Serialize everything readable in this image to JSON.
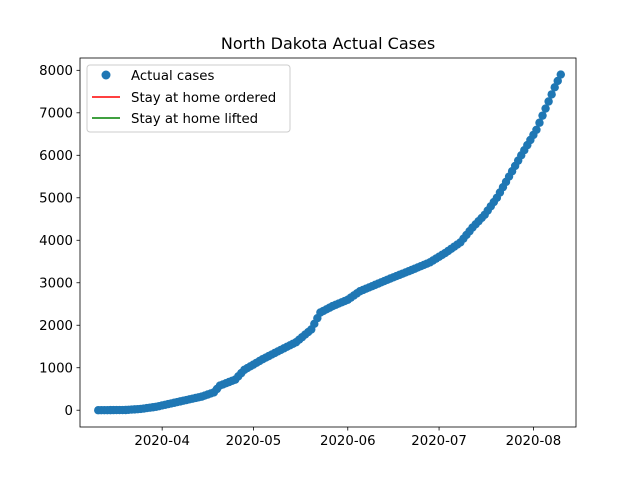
{
  "chart_data": {
    "type": "scatter",
    "title": "North Dakota Actual Cases",
    "xlabel": "",
    "ylabel": "",
    "x_type": "date",
    "xlim": [
      "2020-03-05",
      "2020-08-15"
    ],
    "ylim": [
      -395,
      8290
    ],
    "x_ticks": [
      "2020-04-01",
      "2020-05-01",
      "2020-06-01",
      "2020-07-01",
      "2020-08-01"
    ],
    "x_tick_labels": [
      "2020-04",
      "2020-05",
      "2020-06",
      "2020-07",
      "2020-08"
    ],
    "y_ticks": [
      0,
      1000,
      2000,
      3000,
      4000,
      5000,
      6000,
      7000,
      8000
    ],
    "y_tick_labels": [
      "0",
      "1000",
      "2000",
      "3000",
      "4000",
      "5000",
      "6000",
      "7000",
      "8000"
    ],
    "grid": false,
    "legend_position": "top-left",
    "legend": [
      {
        "label": "Actual cases",
        "marker": "circle",
        "color": "#1f77b4"
      },
      {
        "label": "Stay at home ordered",
        "marker": "line",
        "color": "#ff0000"
      },
      {
        "label": "Stay at home lifted",
        "marker": "line",
        "color": "#008000"
      }
    ],
    "series": [
      {
        "name": "Actual cases",
        "color": "#1f77b4",
        "anchors": [
          [
            "2020-03-11",
            0
          ],
          [
            "2020-03-20",
            5
          ],
          [
            "2020-03-25",
            30
          ],
          [
            "2020-03-30",
            80
          ],
          [
            "2020-04-04",
            160
          ],
          [
            "2020-04-09",
            240
          ],
          [
            "2020-04-14",
            320
          ],
          [
            "2020-04-18",
            420
          ],
          [
            "2020-04-20",
            580
          ],
          [
            "2020-04-25",
            720
          ],
          [
            "2020-04-28",
            950
          ],
          [
            "2020-05-04",
            1200
          ],
          [
            "2020-05-10",
            1420
          ],
          [
            "2020-05-15",
            1600
          ],
          [
            "2020-05-20",
            1900
          ],
          [
            "2020-05-23",
            2300
          ],
          [
            "2020-05-27",
            2450
          ],
          [
            "2020-06-01",
            2600
          ],
          [
            "2020-06-05",
            2800
          ],
          [
            "2020-06-10",
            2950
          ],
          [
            "2020-06-15",
            3100
          ],
          [
            "2020-06-22",
            3300
          ],
          [
            "2020-06-28",
            3480
          ],
          [
            "2020-07-03",
            3700
          ],
          [
            "2020-07-08",
            3950
          ],
          [
            "2020-07-12",
            4300
          ],
          [
            "2020-07-16",
            4600
          ],
          [
            "2020-07-20",
            5000
          ],
          [
            "2020-07-24",
            5500
          ],
          [
            "2020-07-28",
            6000
          ],
          [
            "2020-08-02",
            6600
          ],
          [
            "2020-08-05",
            7100
          ],
          [
            "2020-08-08",
            7600
          ],
          [
            "2020-08-10",
            7900
          ]
        ]
      }
    ]
  }
}
